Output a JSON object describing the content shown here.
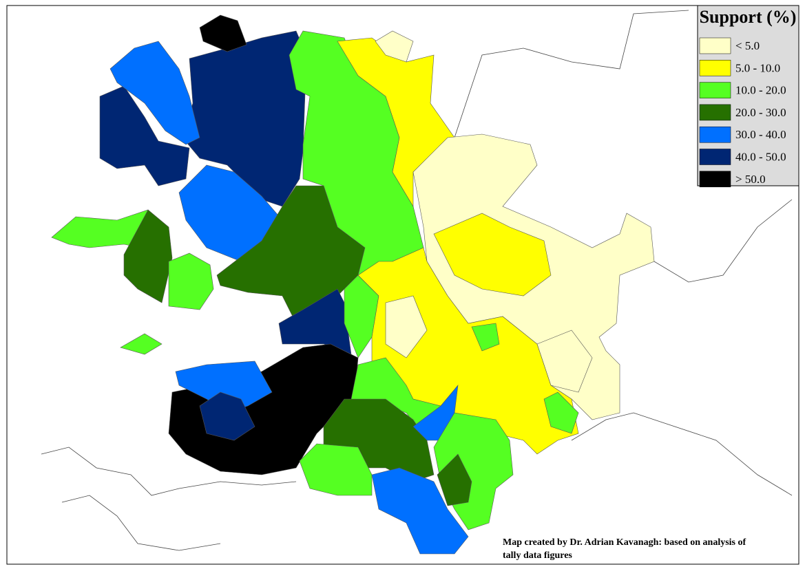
{
  "legend": {
    "title": "Support (%)",
    "items": [
      {
        "label": "< 5.0",
        "color": "#ffffc8"
      },
      {
        "label": "5.0 - 10.0",
        "color": "#ffff00"
      },
      {
        "label": "10.0 - 20.0",
        "color": "#55ff22"
      },
      {
        "label": "20.0 - 30.0",
        "color": "#267000"
      },
      {
        "label": "30.0 - 40.0",
        "color": "#0070ff"
      },
      {
        "label": "40.0 - 50.0",
        "color": "#002673"
      },
      {
        "label": "> 50.0",
        "color": "#000000"
      }
    ]
  },
  "credit": [
    "Map created by Dr. Adrian Kavanagh: based on analysis of",
    "tally data figures"
  ]
}
